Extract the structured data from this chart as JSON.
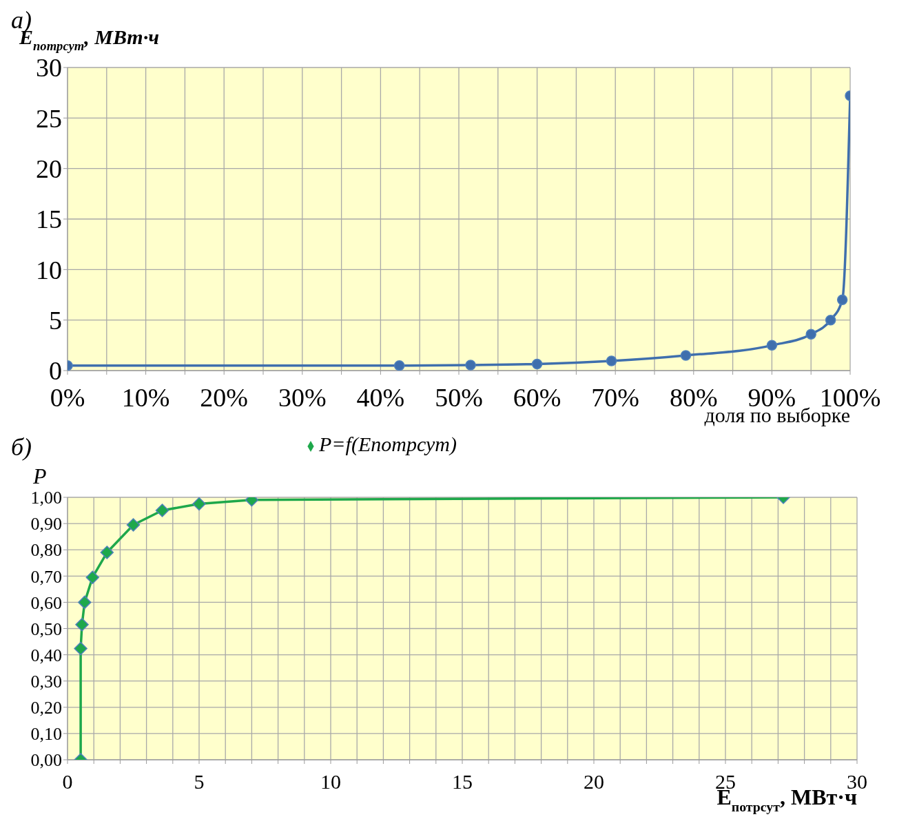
{
  "chart_data": [
    {
      "type": "line",
      "annotations": [
        "а)"
      ],
      "xlabel": "доля по выборке",
      "ylabel": "E$_{потрсут}$, МВт·ч",
      "xlim": [
        0,
        1
      ],
      "ylim": [
        0,
        30
      ],
      "xticks": [
        {
          "value": 0,
          "label": "0%"
        },
        {
          "value": 0.05,
          "label": null
        },
        {
          "value": 0.1,
          "label": "10%"
        },
        {
          "value": 0.15,
          "label": null
        },
        {
          "value": 0.2,
          "label": "20%"
        },
        {
          "value": 0.25,
          "label": null
        },
        {
          "value": 0.3,
          "label": "30%"
        },
        {
          "value": 0.35,
          "label": null
        },
        {
          "value": 0.4,
          "label": "40%"
        },
        {
          "value": 0.45,
          "label": null
        },
        {
          "value": 0.5,
          "label": "50%"
        },
        {
          "value": 0.55,
          "label": null
        },
        {
          "value": 0.6,
          "label": "60%"
        },
        {
          "value": 0.65,
          "label": null
        },
        {
          "value": 0.7,
          "label": "70%"
        },
        {
          "value": 0.75,
          "label": null
        },
        {
          "value": 0.8,
          "label": "80%"
        },
        {
          "value": 0.85,
          "label": null
        },
        {
          "value": 0.9,
          "label": "90%"
        },
        {
          "value": 0.95,
          "label": null
        },
        {
          "value": 1,
          "label": "100%"
        }
      ],
      "yticks": [
        0,
        5,
        10,
        15,
        20,
        25,
        30
      ],
      "grid": true,
      "legend": false,
      "marker": "circle",
      "line_style": "solid",
      "x": [
        0,
        0.424,
        0.515,
        0.6,
        0.695,
        0.79,
        0.9,
        0.95,
        0.975,
        0.99,
        1
      ],
      "series": [
        {
          "color": "#3f6fad",
          "values": [
            0.5,
            0.5,
            0.55,
            0.65,
            0.95,
            1.5,
            2.5,
            3.6,
            5.0,
            7.0,
            27.2
          ]
        }
      ]
    },
    {
      "type": "line",
      "annotations": [
        "б)"
      ],
      "xlabel": "E$_{потрсут}$, МВт·ч",
      "ylabel": "P",
      "xlim": [
        0,
        30
      ],
      "ylim": [
        0,
        1
      ],
      "xticks": [
        0,
        {
          "value": 1,
          "label": null
        },
        {
          "value": 2,
          "label": null
        },
        {
          "value": 3,
          "label": null
        },
        {
          "value": 4,
          "label": null
        },
        5,
        {
          "value": 6,
          "label": null
        },
        {
          "value": 7,
          "label": null
        },
        {
          "value": 8,
          "label": null
        },
        {
          "value": 9,
          "label": null
        },
        10,
        {
          "value": 11,
          "label": null
        },
        {
          "value": 12,
          "label": null
        },
        {
          "value": 13,
          "label": null
        },
        {
          "value": 14,
          "label": null
        },
        15,
        {
          "value": 16,
          "label": null
        },
        {
          "value": 17,
          "label": null
        },
        {
          "value": 18,
          "label": null
        },
        {
          "value": 19,
          "label": null
        },
        20,
        {
          "value": 21,
          "label": null
        },
        {
          "value": 22,
          "label": null
        },
        {
          "value": 23,
          "label": null
        },
        {
          "value": 24,
          "label": null
        },
        25,
        {
          "value": 26,
          "label": null
        },
        {
          "value": 27,
          "label": null
        },
        {
          "value": 28,
          "label": null
        },
        {
          "value": 29,
          "label": null
        },
        30
      ],
      "yticks": [
        {
          "value": 0,
          "label": "0,00"
        },
        {
          "value": 0.1,
          "label": "0,10"
        },
        {
          "value": 0.2,
          "label": "0,20"
        },
        {
          "value": 0.3,
          "label": "0,30"
        },
        {
          "value": 0.4,
          "label": "0,40"
        },
        {
          "value": 0.5,
          "label": "0,50"
        },
        {
          "value": 0.6,
          "label": "0,60"
        },
        {
          "value": 0.7,
          "label": "0,70"
        },
        {
          "value": 0.8,
          "label": "0,80"
        },
        {
          "value": 0.9,
          "label": "0,90"
        },
        {
          "value": 1,
          "label": "1,00"
        }
      ],
      "grid": true,
      "legend": "top",
      "marker": "diamond",
      "line_style": "solid",
      "x": [
        0.5,
        0.5,
        0.55,
        0.65,
        0.95,
        1.5,
        2.5,
        3.6,
        5.0,
        7.0,
        27.2
      ],
      "series": [
        {
          "name": "P=f(Eпотрсут)",
          "color": "#1ea84b",
          "values": [
            0,
            0.424,
            0.515,
            0.6,
            0.695,
            0.79,
            0.895,
            0.95,
            0.975,
            0.99,
            1.0
          ]
        }
      ]
    }
  ]
}
